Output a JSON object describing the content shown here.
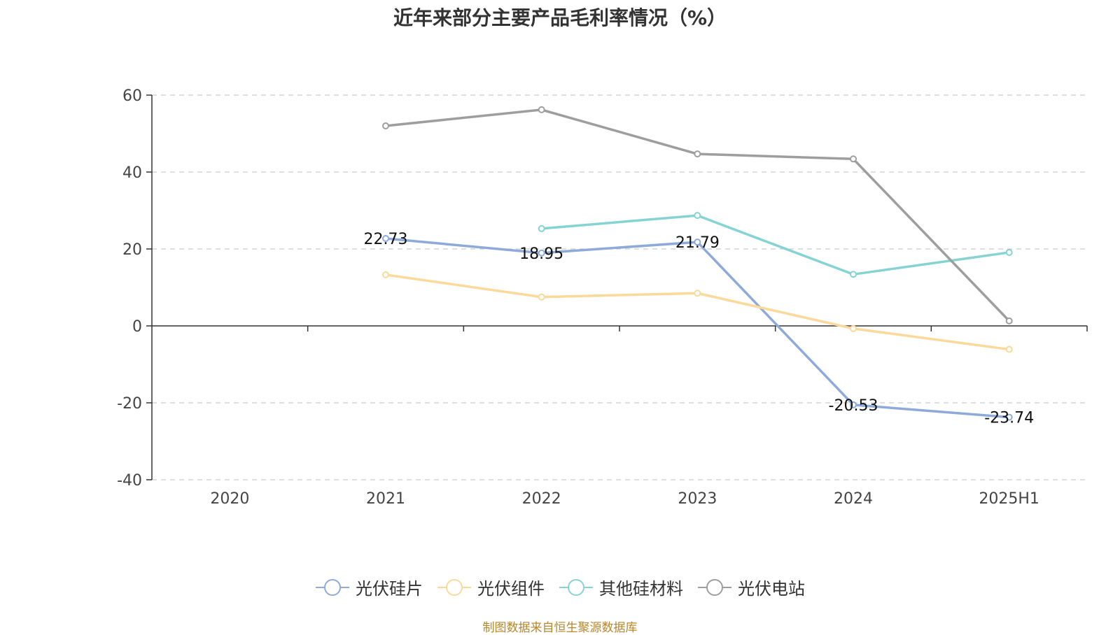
{
  "title": "近年来部分主要产品毛利率情况（%）",
  "source": "制图数据来自恒生聚源数据库",
  "chart_data": {
    "type": "line",
    "categories": [
      "2020",
      "2021",
      "2022",
      "2023",
      "2024",
      "2025H1"
    ],
    "ylim": [
      -40,
      60
    ],
    "yticks": [
      -40,
      -20,
      0,
      20,
      40,
      60
    ],
    "grid": true,
    "legend_position": "bottom",
    "series": [
      {
        "name": "光伏硅片",
        "color": "#8eaadb",
        "values": [
          null,
          22.73,
          18.95,
          21.79,
          -20.53,
          -23.74
        ],
        "labels": [
          null,
          "22.73",
          "18.95",
          "21.79",
          "-20.53",
          "-23.74"
        ]
      },
      {
        "name": "光伏组件",
        "color": "#fad99a",
        "values": [
          null,
          13.3,
          7.5,
          8.5,
          -0.7,
          -6.1
        ]
      },
      {
        "name": "其他硅材料",
        "color": "#86d3d4",
        "values": [
          null,
          null,
          25.3,
          28.7,
          13.4,
          19.1
        ]
      },
      {
        "name": "光伏电站",
        "color": "#9e9e9e",
        "values": [
          null,
          52.0,
          56.2,
          44.7,
          43.4,
          1.3
        ]
      }
    ]
  }
}
